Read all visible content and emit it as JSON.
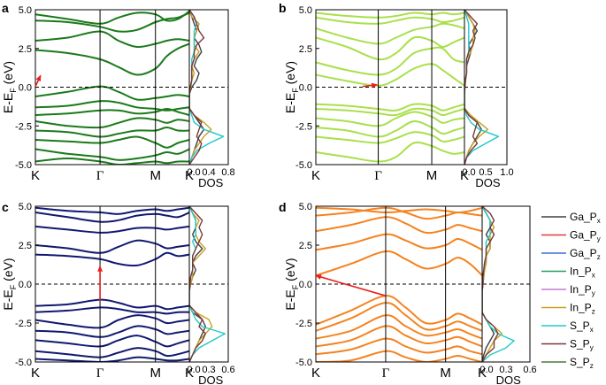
{
  "chart_data": [
    {
      "panel": "a",
      "type": "line",
      "ylabel": "E-E_F (eV)",
      "ylim": [
        -5,
        5
      ],
      "yticks": [
        "5.0",
        "2.5",
        "0.0",
        "-2.5",
        "-5.0"
      ],
      "kpoints": [
        "K",
        "Γ",
        "M",
        "K"
      ],
      "band_color": "#1a7a1a",
      "dos_xlabel": "DOS",
      "dos_xticks": [
        "0.0",
        "0.4",
        "0.8"
      ],
      "dos_xlim": [
        0,
        0.8
      ],
      "dos_peak": 0.7,
      "gap_arrow": {
        "from": [
          0.0,
          0.05
        ],
        "to": [
          0.08,
          0.75
        ]
      },
      "bands": [
        [
          4.3,
          4.2,
          3.9,
          3.6,
          3.7,
          4.2,
          4.4,
          4.5,
          4.8
        ],
        [
          4.7,
          4.4,
          4.1,
          4.5,
          4.8,
          4.7,
          4.3,
          4.4,
          4.9
        ],
        [
          3.0,
          3.2,
          3.6,
          3.0,
          2.6,
          2.8,
          3.0,
          3.1,
          3.0
        ],
        [
          2.4,
          2.2,
          1.8,
          1.3,
          0.8,
          1.2,
          2.0,
          2.5,
          2.8
        ],
        [
          -0.6,
          -0.3,
          0.05,
          -0.3,
          -0.8,
          -0.7,
          -0.6,
          -0.5,
          -0.6
        ],
        [
          -1.3,
          -1.2,
          -0.9,
          -1.0,
          -1.3,
          -1.4,
          -1.5,
          -1.4,
          -1.3
        ],
        [
          -1.8,
          -1.7,
          -1.5,
          -1.5,
          -1.7,
          -1.6,
          -1.4,
          -1.6,
          -1.8
        ],
        [
          -2.2,
          -2.5,
          -2.6,
          -2.3,
          -2.0,
          -2.1,
          -2.3,
          -2.1,
          -2.2
        ],
        [
          -2.8,
          -2.9,
          -3.2,
          -3.0,
          -2.8,
          -2.8,
          -2.6,
          -2.8,
          -2.8
        ],
        [
          -3.4,
          -3.5,
          -3.6,
          -3.4,
          -3.2,
          -3.6,
          -3.9,
          -3.6,
          -3.4
        ],
        [
          -4.0,
          -4.3,
          -4.5,
          -4.7,
          -4.6,
          -4.4,
          -4.2,
          -4.3,
          -4.0
        ],
        [
          -4.8,
          -4.6,
          -4.8,
          -5.0,
          -4.9,
          -4.8,
          -4.9,
          -4.8,
          -4.8
        ]
      ],
      "dos": [
        {
          "name": "Ga_Px",
          "values": [
            0,
            0.05,
            0.1,
            0.15,
            0.1,
            0.2,
            0.25,
            0.15,
            0.1,
            0.2,
            0.15,
            0.05,
            0,
            0,
            0,
            0.1,
            0.2,
            0.3,
            0.2,
            0.15,
            0.1,
            0.05,
            0
          ]
        },
        {
          "name": "In_Pz",
          "values": [
            0,
            0.05,
            0.2,
            0.15,
            0.1,
            0.1,
            0.2,
            0.1,
            0.05,
            0.1,
            0.05,
            0.03,
            0,
            0,
            0,
            0.1,
            0.3,
            0.45,
            0.3,
            0.2,
            0.1,
            0.05,
            0
          ]
        },
        {
          "name": "S_Px",
          "values": [
            0,
            0.1,
            0.15,
            0.1,
            0.1,
            0.1,
            0.1,
            0.05,
            0.05,
            0.05,
            0.05,
            0.02,
            0,
            0,
            0,
            0.05,
            0.1,
            0.3,
            0.7,
            0.4,
            0.15,
            0.05,
            0
          ]
        },
        {
          "name": "S_Py",
          "values": [
            0,
            0.1,
            0.15,
            0.2,
            0.3,
            0.15,
            0.1,
            0.1,
            0.05,
            0.05,
            0.05,
            0.02,
            0,
            0,
            0,
            0.1,
            0.25,
            0.2,
            0.15,
            0.25,
            0.2,
            0.1,
            0
          ]
        }
      ]
    },
    {
      "panel": "b",
      "type": "line",
      "ylabel": "E-E_F (eV)",
      "ylim": [
        -5,
        5
      ],
      "yticks": [
        "5.0",
        "2.5",
        "0.0",
        "-2.5",
        "-5.0"
      ],
      "kpoints": [
        "K",
        "Γ",
        "M",
        "K"
      ],
      "band_color": "#a8e04a",
      "dos_xlabel": "DOS",
      "dos_xticks": [
        "0.0",
        "0.5",
        "1.0"
      ],
      "dos_xlim": [
        0,
        1.0
      ],
      "gap_arrow": {
        "from": [
          0.75,
          0.05
        ],
        "to": [
          0.98,
          0.15
        ]
      },
      "bands": [
        [
          4.8,
          4.6,
          4.5,
          4.6,
          4.8,
          4.7,
          4.8,
          4.7,
          4.8
        ],
        [
          4.5,
          4.2,
          4.1,
          4.3,
          4.5,
          4.4,
          4.2,
          4.3,
          4.5
        ],
        [
          3.8,
          3.2,
          2.8,
          3.2,
          3.7,
          3.9,
          4.1,
          4.0,
          3.8
        ],
        [
          3.2,
          2.6,
          1.8,
          2.2,
          3.2,
          3.0,
          2.6,
          2.9,
          3.2
        ],
        [
          1.6,
          1.1,
          0.8,
          1.2,
          2.2,
          2.5,
          2.5,
          1.8,
          1.6
        ],
        [
          0.8,
          0.4,
          0.1,
          0.5,
          1.2,
          1.5,
          1.1,
          0.6,
          0.1
        ],
        [
          -1.1,
          -1.2,
          -1.4,
          -1.5,
          -1.1,
          -1.2,
          -1.5,
          -1.3,
          -1.1
        ],
        [
          -1.4,
          -1.5,
          -1.7,
          -1.8,
          -1.4,
          -1.5,
          -1.8,
          -1.6,
          -1.4
        ],
        [
          -2.0,
          -2.2,
          -2.5,
          -2.0,
          -1.6,
          -1.9,
          -2.3,
          -2.1,
          -2.0
        ],
        [
          -2.6,
          -2.8,
          -3.2,
          -2.8,
          -2.2,
          -2.6,
          -3.0,
          -2.8,
          -2.6
        ],
        [
          -3.2,
          -3.4,
          -3.6,
          -3.3,
          -2.9,
          -3.1,
          -3.5,
          -3.4,
          -3.2
        ],
        [
          -4.2,
          -4.5,
          -4.8,
          -4.5,
          -3.6,
          -3.8,
          -4.1,
          -4.3,
          -4.2
        ]
      ],
      "dos": [
        {
          "name": "Ga_Px",
          "values": [
            0,
            0.1,
            0.2,
            0.3,
            0.2,
            0.1,
            0.15,
            0.1,
            0.05,
            0.05,
            0.02,
            0.01,
            0,
            0,
            0,
            0.1,
            0.3,
            0.4,
            0.3,
            0.2,
            0.1,
            0.05,
            0
          ]
        },
        {
          "name": "In_Pz",
          "values": [
            0,
            0.1,
            0.2,
            0.25,
            0.2,
            0.2,
            0.15,
            0.05,
            0.05,
            0.05,
            0.03,
            0.01,
            0,
            0,
            0,
            0.15,
            0.35,
            0.55,
            0.35,
            0.2,
            0.1,
            0.05,
            0
          ]
        },
        {
          "name": "S_Px",
          "values": [
            0,
            0.05,
            0.1,
            0.1,
            0.1,
            0.1,
            0.1,
            0.05,
            0.05,
            0.05,
            0.02,
            0.01,
            0,
            0,
            0,
            0.05,
            0.15,
            0.35,
            0.8,
            0.5,
            0.2,
            0.05,
            0
          ]
        },
        {
          "name": "S_Py",
          "values": [
            0,
            0.15,
            0.3,
            0.2,
            0.25,
            0.2,
            0.1,
            0.05,
            0.05,
            0.05,
            0.02,
            0.01,
            0,
            0,
            0,
            0.1,
            0.3,
            0.25,
            0.2,
            0.3,
            0.15,
            0.05,
            0
          ]
        }
      ]
    },
    {
      "panel": "c",
      "type": "line",
      "ylabel": "E-E_F (eV)",
      "ylim": [
        -5,
        5
      ],
      "yticks": [
        "5.0",
        "2.5",
        "0.0",
        "-2.5",
        "-5.0"
      ],
      "kpoints": [
        "K",
        "Γ",
        "M",
        "K"
      ],
      "band_color": "#101870",
      "dos_xlabel": "DOS",
      "dos_xticks": [
        "0.0",
        "0.3",
        "0.6"
      ],
      "dos_xlim": [
        0,
        0.6
      ],
      "gap_arrow": {
        "from": [
          1.0,
          -1.05
        ],
        "to": [
          1.0,
          1.15
        ]
      },
      "bands": [
        [
          4.9,
          4.7,
          4.6,
          4.5,
          4.7,
          4.8,
          4.7,
          4.8,
          4.9
        ],
        [
          4.6,
          4.3,
          4.0,
          4.1,
          4.4,
          4.5,
          4.4,
          4.3,
          4.6
        ],
        [
          3.7,
          3.5,
          3.3,
          3.4,
          3.6,
          3.6,
          3.5,
          3.6,
          3.7
        ],
        [
          2.5,
          2.3,
          2.0,
          2.4,
          2.8,
          2.6,
          2.3,
          2.4,
          2.5
        ],
        [
          1.9,
          1.8,
          1.6,
          1.3,
          1.2,
          1.6,
          2.0,
          1.8,
          1.9
        ],
        [
          -1.4,
          -1.3,
          -1.0,
          -1.2,
          -1.5,
          -1.4,
          -1.6,
          -1.5,
          -1.4
        ],
        [
          -1.8,
          -1.7,
          -1.5,
          -1.6,
          -1.8,
          -1.8,
          -1.9,
          -1.8,
          -1.8
        ],
        [
          -2.3,
          -2.6,
          -2.8,
          -2.3,
          -2.0,
          -2.2,
          -2.5,
          -2.4,
          -2.3
        ],
        [
          -3.0,
          -3.1,
          -3.4,
          -3.1,
          -2.7,
          -2.9,
          -3.2,
          -3.1,
          -3.0
        ],
        [
          -3.6,
          -3.8,
          -4.0,
          -3.6,
          -3.3,
          -3.7,
          -4.0,
          -3.8,
          -3.6
        ],
        [
          -4.3,
          -4.5,
          -4.7,
          -4.4,
          -4.1,
          -4.3,
          -4.6,
          -4.5,
          -4.3
        ],
        [
          -4.8,
          -4.9,
          -5.0,
          -4.9,
          -4.7,
          -4.8,
          -4.9,
          -4.9,
          -4.8
        ]
      ],
      "dos": [
        {
          "name": "Ga_Px",
          "values": [
            0,
            0.05,
            0.1,
            0.1,
            0.05,
            0.1,
            0.2,
            0.1,
            0.05,
            0.1,
            0.05,
            0.02,
            0,
            0,
            0,
            0.05,
            0.2,
            0.25,
            0.2,
            0.15,
            0.1,
            0.05,
            0
          ]
        },
        {
          "name": "In_Pz",
          "values": [
            0,
            0.05,
            0.15,
            0.1,
            0.1,
            0.15,
            0.25,
            0.15,
            0.05,
            0.05,
            0.05,
            0.02,
            0,
            0,
            0,
            0.1,
            0.3,
            0.35,
            0.25,
            0.15,
            0.1,
            0.05,
            0
          ]
        },
        {
          "name": "S_Px",
          "values": [
            0,
            0.05,
            0.1,
            0.1,
            0.1,
            0.05,
            0.1,
            0.05,
            0.05,
            0.05,
            0.02,
            0.01,
            0,
            0,
            0,
            0.05,
            0.1,
            0.2,
            0.55,
            0.35,
            0.15,
            0.05,
            0
          ]
        },
        {
          "name": "S_Py",
          "values": [
            0,
            0.1,
            0.2,
            0.15,
            0.2,
            0.15,
            0.1,
            0.05,
            0.05,
            0.05,
            0.02,
            0.01,
            0,
            0,
            0,
            0.1,
            0.2,
            0.15,
            0.25,
            0.2,
            0.1,
            0.05,
            0
          ]
        }
      ]
    },
    {
      "panel": "d",
      "type": "line",
      "ylabel": "E-E_F (eV)",
      "ylim": [
        -5,
        5
      ],
      "yticks": [
        "5.0",
        "2.5",
        "0.0",
        "-2.5",
        "-5.0"
      ],
      "kpoints": [
        "K",
        "Γ",
        "M",
        "K"
      ],
      "band_color": "#f5821f",
      "dos_xlabel": "DOS",
      "dos_xticks": [
        "0.0",
        "0.3",
        "0.6"
      ],
      "dos_xlim": [
        0,
        0.6
      ],
      "gap_arrow": {
        "from": [
          1.0,
          -0.75
        ],
        "to": [
          0.0,
          0.55
        ]
      },
      "bands": [
        [
          4.9,
          4.8,
          4.6,
          4.7,
          4.8,
          4.7,
          4.6,
          4.7,
          4.9
        ],
        [
          4.4,
          4.6,
          4.9,
          4.6,
          4.2,
          4.4,
          4.6,
          4.5,
          4.4
        ],
        [
          3.4,
          3.8,
          4.3,
          3.9,
          3.3,
          3.5,
          3.8,
          3.6,
          3.4
        ],
        [
          2.2,
          2.6,
          3.2,
          2.8,
          2.3,
          2.5,
          2.9,
          2.6,
          2.2
        ],
        [
          0.55,
          1.3,
          2.1,
          1.6,
          1.0,
          1.3,
          1.7,
          1.3,
          0.55
        ],
        [
          -2.6,
          -1.7,
          -0.75,
          -1.5,
          -2.5,
          -2.3,
          -1.9,
          -2.2,
          -2.6
        ],
        [
          -3.0,
          -2.2,
          -1.2,
          -2.0,
          -2.9,
          -2.7,
          -2.4,
          -2.7,
          -3.0
        ],
        [
          -3.5,
          -3.0,
          -2.0,
          -2.7,
          -3.3,
          -3.1,
          -2.9,
          -3.2,
          -3.5
        ],
        [
          -4.0,
          -3.6,
          -2.7,
          -3.3,
          -3.8,
          -3.6,
          -3.4,
          -3.7,
          -4.0
        ],
        [
          -4.5,
          -4.2,
          -3.5,
          -4.0,
          -4.4,
          -4.2,
          -4.0,
          -4.3,
          -4.5
        ],
        [
          -5.0,
          -4.9,
          -4.3,
          -4.7,
          -5.0,
          -4.8,
          -4.6,
          -4.8,
          -5.0
        ]
      ],
      "dos": [
        {
          "name": "Ga_Px",
          "values": [
            0,
            0.05,
            0.1,
            0.1,
            0.05,
            0.1,
            0.1,
            0.05,
            0.05,
            0.03,
            0.02,
            0.01,
            0,
            0,
            0,
            0,
            0.05,
            0.1,
            0.15,
            0.1,
            0.05,
            0.02,
            0
          ]
        },
        {
          "name": "In_Pz",
          "values": [
            0,
            0.05,
            0.1,
            0.15,
            0.1,
            0.1,
            0.1,
            0.05,
            0.05,
            0.03,
            0.02,
            0.01,
            0,
            0,
            0,
            0,
            0.05,
            0.15,
            0.25,
            0.15,
            0.1,
            0.05,
            0
          ]
        },
        {
          "name": "S_Px",
          "values": [
            0,
            0.05,
            0.1,
            0.1,
            0.1,
            0.05,
            0.05,
            0.05,
            0.03,
            0.02,
            0.01,
            0.01,
            0,
            0,
            0,
            0,
            0.05,
            0.1,
            0.2,
            0.4,
            0.3,
            0.1,
            0
          ]
        },
        {
          "name": "S_Py",
          "values": [
            0,
            0.1,
            0.15,
            0.1,
            0.15,
            0.1,
            0.05,
            0.05,
            0.03,
            0.02,
            0.01,
            0.01,
            0,
            0,
            0,
            0,
            0.05,
            0.15,
            0.2,
            0.15,
            0.15,
            0.05,
            0
          ]
        }
      ]
    }
  ],
  "legend": [
    {
      "base": "Ga_P",
      "sub": "x",
      "color": "#404040"
    },
    {
      "base": "Ga_P",
      "sub": "y",
      "color": "#e8383d"
    },
    {
      "base": "Ga_P",
      "sub": "z",
      "color": "#3a6fd8"
    },
    {
      "base": "In_P",
      "sub": "x",
      "color": "#2a9a5a"
    },
    {
      "base": "In_P",
      "sub": "y",
      "color": "#c878d8"
    },
    {
      "base": "In_P",
      "sub": "z",
      "color": "#c8a020"
    },
    {
      "base": "S_P",
      "sub": "x",
      "color": "#20c8c8"
    },
    {
      "base": "S_P",
      "sub": "y",
      "color": "#7a3838"
    },
    {
      "base": "S_P",
      "sub": "z",
      "color": "#4a7838"
    }
  ],
  "dos_color_map": {
    "Ga_Px": "#404040",
    "In_Pz": "#c8a020",
    "S_Px": "#20c8c8",
    "S_Py": "#7a3838"
  },
  "axis_text": {
    "ylabel_main": "E-E",
    "ylabel_sub": "F",
    "ylabel_tail": " (eV)"
  }
}
